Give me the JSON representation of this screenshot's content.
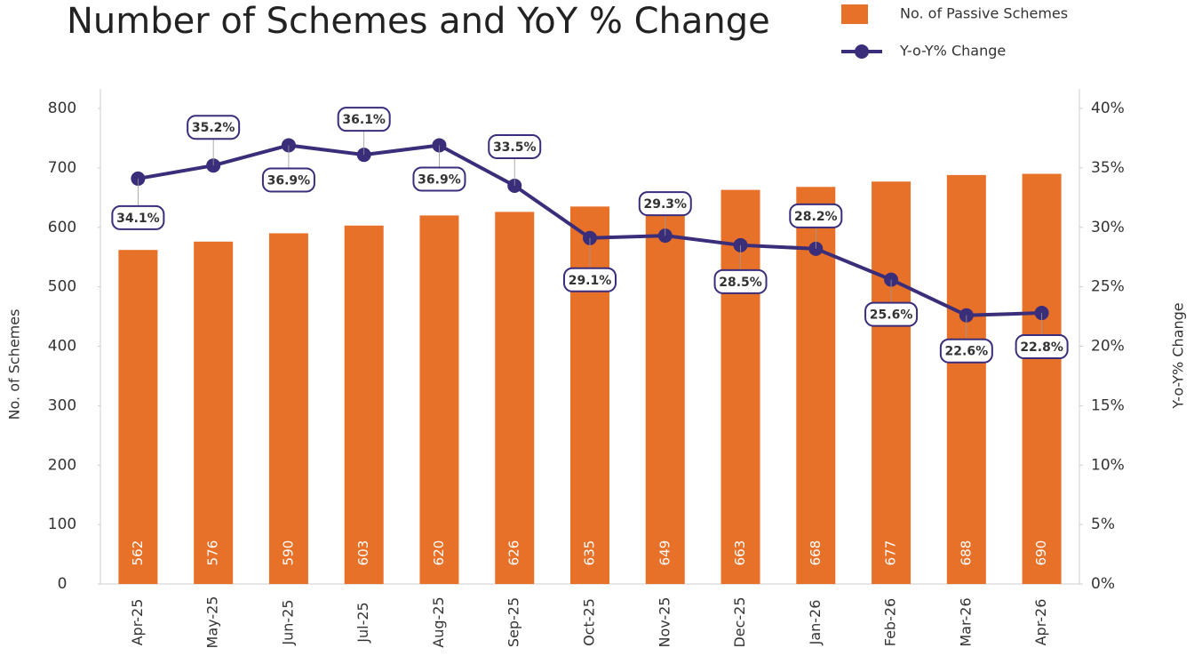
{
  "chart_data": {
    "type": "bar_line",
    "title": "Number of Schemes and YoY % Change",
    "categories": [
      "Apr-25",
      "May-25",
      "Jun-25",
      "Jul-25",
      "Aug-25",
      "Sep-25",
      "Oct-25",
      "Nov-25",
      "Dec-25",
      "Jan-26",
      "Feb-26",
      "Mar-26",
      "Apr-26"
    ],
    "y_label": "No. of Schemes",
    "y2_label": "Y-o-Y% Change",
    "ylim": [
      0,
      800
    ],
    "yticks": [
      0,
      100,
      200,
      300,
      400,
      500,
      600,
      700,
      800
    ],
    "y2lim": [
      0,
      40
    ],
    "y2ticks": [
      {
        "value": 0,
        "label": "0%"
      },
      {
        "value": 5,
        "label": "5%"
      },
      {
        "value": 10,
        "label": "10%"
      },
      {
        "value": 15,
        "label": "15%"
      },
      {
        "value": 20,
        "label": "20%"
      },
      {
        "value": 25,
        "label": "25%"
      },
      {
        "value": 30,
        "label": "30%"
      },
      {
        "value": 35,
        "label": "35%"
      },
      {
        "value": 40,
        "label": "40%"
      }
    ],
    "series": [
      {
        "name": "No. of Passive Schemes",
        "type": "bar",
        "color": "#e8712a",
        "values": [
          562,
          576,
          590,
          603,
          620,
          626,
          635,
          649,
          663,
          668,
          677,
          688,
          690
        ]
      },
      {
        "name": "Y-o-Y% Change",
        "type": "line",
        "axis": "y2",
        "color": "#3a2d7a",
        "values": [
          34.1,
          35.2,
          36.9,
          36.1,
          36.9,
          33.5,
          29.1,
          29.3,
          28.5,
          28.2,
          25.6,
          22.6,
          22.8
        ],
        "value_labels": [
          "34.1%",
          "35.2%",
          "36.9%",
          "36.1%",
          "36.9%",
          "33.5%",
          "29.1%",
          "29.3%",
          "28.5%",
          "28.2%",
          "25.6%",
          "22.6%",
          "22.8%"
        ]
      }
    ]
  }
}
